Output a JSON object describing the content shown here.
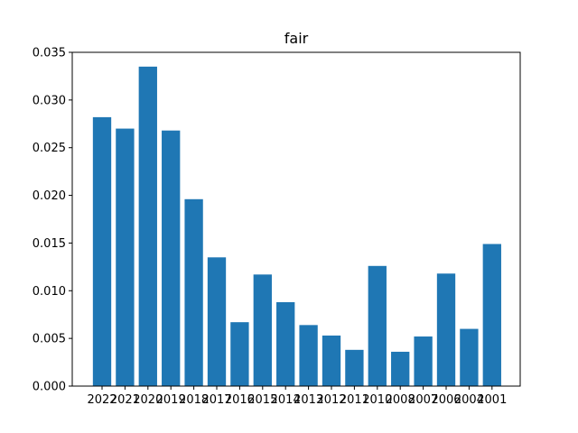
{
  "chart_data": {
    "type": "bar",
    "title": "fair",
    "xlabel": "",
    "ylabel": "",
    "categories": [
      "2022",
      "2021",
      "2020",
      "2019",
      "2018",
      "2017",
      "2016",
      "2015",
      "2014",
      "2013",
      "2012",
      "2011",
      "2010",
      "2008",
      "2007",
      "2006",
      "2004",
      "2001"
    ],
    "values": [
      0.0282,
      0.027,
      0.0335,
      0.0268,
      0.0196,
      0.0135,
      0.0067,
      0.0117,
      0.0088,
      0.0064,
      0.0053,
      0.0038,
      0.0126,
      0.0036,
      0.0052,
      0.0118,
      0.006,
      0.0149
    ],
    "ylim": [
      0,
      0.035
    ],
    "yticks": [
      "0.000",
      "0.005",
      "0.010",
      "0.015",
      "0.020",
      "0.025",
      "0.030",
      "0.035"
    ],
    "grid": false,
    "legend": "none",
    "bar_color": "#1f77b4"
  }
}
